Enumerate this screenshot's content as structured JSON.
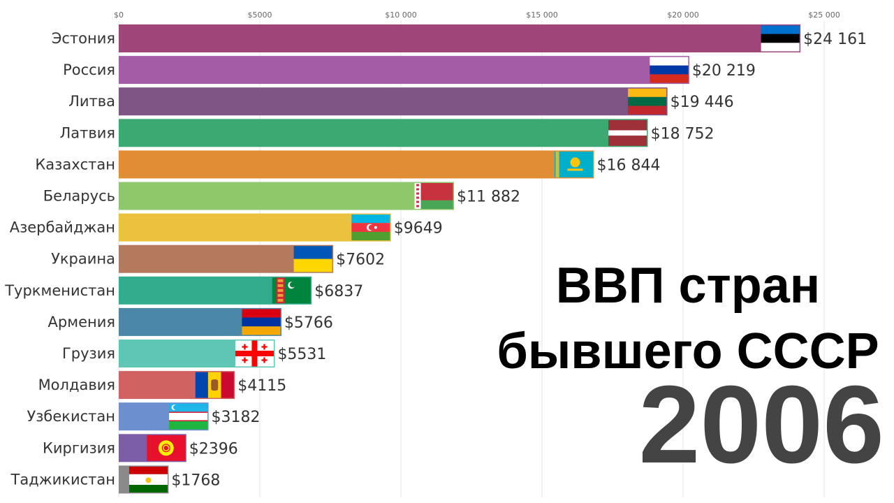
{
  "title_line1": "ВВП стран",
  "title_line2": "бывшего СССР",
  "year": "2006",
  "chart_data": {
    "type": "bar",
    "orientation": "horizontal",
    "xlim": [
      0,
      25000
    ],
    "ticks": [
      {
        "value": 0,
        "label": "$0"
      },
      {
        "value": 5000,
        "label": "$5000"
      },
      {
        "value": 10000,
        "label": "$10 000"
      },
      {
        "value": 15000,
        "label": "$15 000"
      },
      {
        "value": 20000,
        "label": "$20 000"
      },
      {
        "value": 25000,
        "label": "$25 000"
      }
    ],
    "bars": [
      {
        "category": "Эстония",
        "value": 24161,
        "label": "$24 161",
        "color": "#a0457a",
        "flag": "estonia"
      },
      {
        "category": "Россия",
        "value": 20219,
        "label": "$20 219",
        "color": "#a55ca6",
        "flag": "russia"
      },
      {
        "category": "Литва",
        "value": 19446,
        "label": "$19 446",
        "color": "#7e5585",
        "flag": "lithuania"
      },
      {
        "category": "Латвия",
        "value": 18752,
        "label": "$18 752",
        "color": "#3ca872",
        "flag": "latvia"
      },
      {
        "category": "Казахстан",
        "value": 16844,
        "label": "$16 844",
        "color": "#e08d35",
        "flag": "kazakhstan"
      },
      {
        "category": "Беларусь",
        "value": 11882,
        "label": "$11 882",
        "color": "#8ec86b",
        "flag": "belarus"
      },
      {
        "category": "Азербайджан",
        "value": 9649,
        "label": "$9649",
        "color": "#ecc13e",
        "flag": "azerbaijan"
      },
      {
        "category": "Украина",
        "value": 7602,
        "label": "$7602",
        "color": "#b57a5e",
        "flag": "ukraine"
      },
      {
        "category": "Туркменистан",
        "value": 6837,
        "label": "$6837",
        "color": "#33ac8e",
        "flag": "turkmenistan"
      },
      {
        "category": "Армения",
        "value": 5766,
        "label": "$5766",
        "color": "#4a87a8",
        "flag": "armenia"
      },
      {
        "category": "Грузия",
        "value": 5531,
        "label": "$5531",
        "color": "#5fc5b4",
        "flag": "georgia"
      },
      {
        "category": "Молдавия",
        "value": 4115,
        "label": "$4115",
        "color": "#d06262",
        "flag": "moldova"
      },
      {
        "category": "Узбекистан",
        "value": 3182,
        "label": "$3182",
        "color": "#6c8fd0",
        "flag": "uzbekistan"
      },
      {
        "category": "Киргизия",
        "value": 2396,
        "label": "$2396",
        "color": "#7b5ea7",
        "flag": "kyrgyzstan"
      },
      {
        "category": "Таджикистан",
        "value": 1768,
        "label": "$1768",
        "color": "#8a8a8a",
        "flag": "tajikistan"
      }
    ]
  }
}
